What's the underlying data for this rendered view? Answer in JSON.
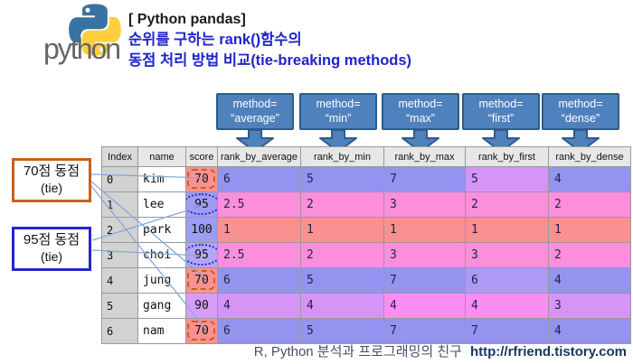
{
  "header": {
    "logo_wordmark": "python",
    "title_line1": "[ Python pandas]",
    "title_line2": "순위를 구하는 rank()함수의",
    "title_line3": "동점 처리 방법 비교(tie-breaking methods)"
  },
  "method_callouts": [
    {
      "line1": "method=",
      "line2": "“average”"
    },
    {
      "line1": "method=",
      "line2": "“min”"
    },
    {
      "line1": "method=",
      "line2": "“max”"
    },
    {
      "line1": "method=",
      "line2": "“first”"
    },
    {
      "line1": "method=",
      "line2": "“dense”"
    }
  ],
  "annotations": {
    "tie70": {
      "line1": "70점 동점",
      "line2": "(tie)"
    },
    "tie95": {
      "line1": "95점 동점",
      "line2": "(tie)"
    }
  },
  "table": {
    "columns": [
      "Index",
      "name",
      "score",
      "rank_by_average",
      "rank_by_min",
      "rank_by_max",
      "rank_by_first",
      "rank_by_dense"
    ],
    "rows": [
      {
        "index": "0",
        "name": "kim",
        "score": "70",
        "score_color": "salmon",
        "tie_mark": "dash",
        "ranks": [
          "6",
          "5",
          "7",
          "5",
          "4"
        ],
        "rank_colors": [
          "peri",
          "peri",
          "peri",
          "violet",
          "peri"
        ]
      },
      {
        "index": "1",
        "name": "lee",
        "score": "95",
        "score_color": "score95",
        "tie_mark": "dot",
        "ranks": [
          "2.5",
          "2",
          "3",
          "2",
          "2"
        ],
        "rank_colors": [
          "pink",
          "pink",
          "pink",
          "pink",
          "pink"
        ]
      },
      {
        "index": "2",
        "name": "park",
        "score": "100",
        "score_color": "score100",
        "tie_mark": "none",
        "ranks": [
          "1",
          "1",
          "1",
          "1",
          "1"
        ],
        "rank_colors": [
          "salmon",
          "salmon",
          "salmon",
          "salmon",
          "salmon"
        ]
      },
      {
        "index": "3",
        "name": "choi",
        "score": "95",
        "score_color": "score95b",
        "tie_mark": "dot",
        "ranks": [
          "2.5",
          "2",
          "3",
          "3",
          "2"
        ],
        "rank_colors": [
          "pink",
          "pink",
          "pink",
          "pink",
          "pink"
        ]
      },
      {
        "index": "4",
        "name": "jung",
        "score": "70",
        "score_color": "salmon",
        "tie_mark": "dash",
        "ranks": [
          "6",
          "5",
          "7",
          "6",
          "4"
        ],
        "rank_colors": [
          "peri",
          "peri",
          "peri",
          "periviolet",
          "peri"
        ]
      },
      {
        "index": "5",
        "name": "gang",
        "score": "90",
        "score_color": "score90",
        "tie_mark": "none",
        "ranks": [
          "4",
          "4",
          "4",
          "4",
          "3"
        ],
        "rank_colors": [
          "violet",
          "violet",
          "midpink",
          "midpink",
          "violet"
        ]
      },
      {
        "index": "6",
        "name": "nam",
        "score": "70",
        "score_color": "salmon",
        "tie_mark": "dash",
        "ranks": [
          "6",
          "5",
          "7",
          "7",
          "4"
        ],
        "rank_colors": [
          "peri",
          "peri",
          "peri",
          "peri",
          "peri"
        ]
      }
    ]
  },
  "colors": {
    "theme": {
      "title-blue": "#1f23cc",
      "callout-fill": "#4f81bd",
      "callout-border": "#2e5b8a",
      "tie-orange": "#c9601c",
      "tie-blue": "#2526cf",
      "connector": "#86aad8",
      "url-navy": "#17365d"
    },
    "cell_palette": {
      "salmon": "#fa9191",
      "pink": "#fc8ede",
      "midpink": "#fa8ef3",
      "violet": "#d694f6",
      "periviolet": "#ae99f4",
      "peri": "#9394f0",
      "score95": "#a29bf3",
      "score100": "#9b9ef1",
      "score95b": "#b4a7f6",
      "score90": "#d59ef6"
    }
  },
  "footer": {
    "tagline": "R, Python 분석과 프로그래밍의 친구",
    "url": "http://rfriend.tistory.com"
  }
}
